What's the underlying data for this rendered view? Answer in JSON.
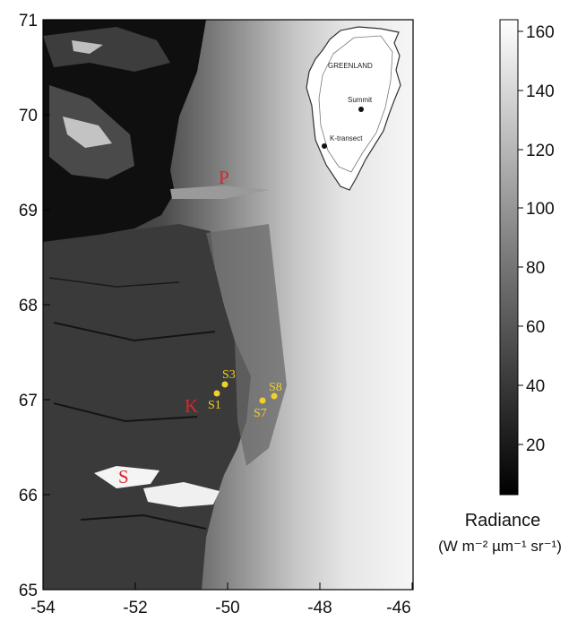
{
  "map": {
    "lat_ticks": [
      "71",
      "70",
      "69",
      "68",
      "67",
      "66",
      "65"
    ],
    "lon_ticks": [
      "-54",
      "-52",
      "-50",
      "-48",
      "-46"
    ]
  },
  "places": [
    {
      "label": "P"
    },
    {
      "label": "K"
    },
    {
      "label": "S"
    }
  ],
  "sites": [
    {
      "label": "S3"
    },
    {
      "label": "S1"
    },
    {
      "label": "S8"
    },
    {
      "label": "S7"
    }
  ],
  "inset": {
    "country": "GREENLAND",
    "point_summit": "Summit",
    "point_transect": "K-transect"
  },
  "colorbar": {
    "ticks": [
      "160",
      "140",
      "120",
      "100",
      "80",
      "60",
      "40",
      "20"
    ],
    "title": "Radiance",
    "units": "(W m⁻² µm⁻¹ sr⁻¹)"
  },
  "colors": {
    "site_marker": "#f2cf2a",
    "place_label": "#d8262b"
  }
}
